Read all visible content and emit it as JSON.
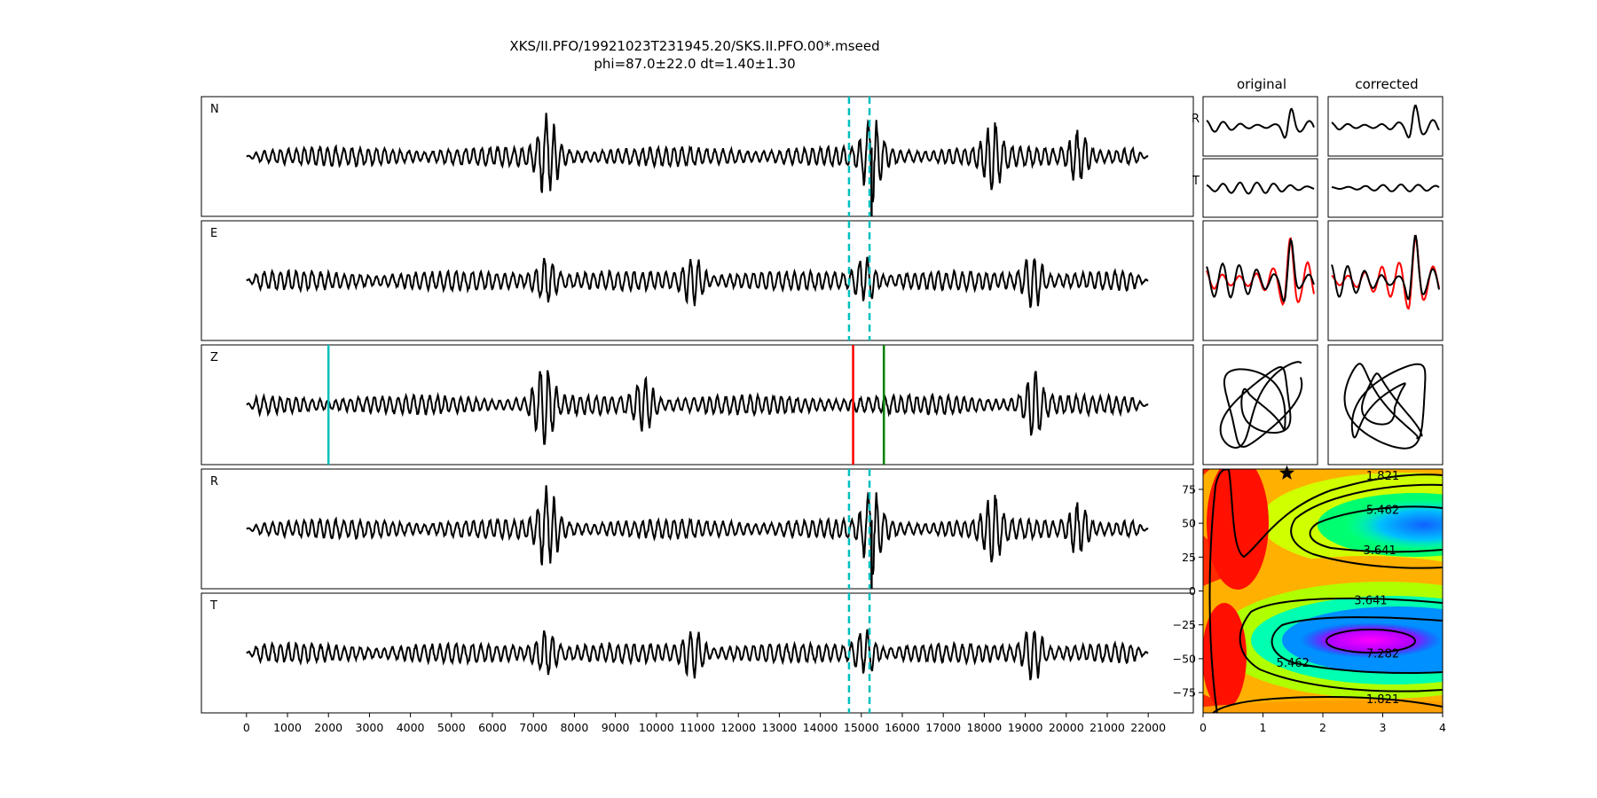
{
  "title": "XKS/II.PFO/19921023T231945.20/SKS.II.PFO.00*.mseed",
  "subtitle": "phi=87.0±22.0 dt=1.40±1.30",
  "panel_labels": {
    "original": "original",
    "corrected": "corrected",
    "row_r": "R",
    "row_t": "T"
  },
  "colors": {
    "trace": "#000000",
    "window_marker": "#00bfbf",
    "pick_start": "#00bfbf",
    "pick_red": "#ff0000",
    "pick_green": "#008000",
    "overlay_trace": "#ff0000"
  },
  "chart_data": [
    {
      "type": "line",
      "description_of_axes": "stacked seismogram traces sharing time axis",
      "xlim": [
        -1100,
        23100
      ],
      "x_ticks": [
        "0",
        "1000",
        "2000",
        "3000",
        "4000",
        "5000",
        "6000",
        "7000",
        "8000",
        "9000",
        "10000",
        "11000",
        "12000",
        "13000",
        "14000",
        "15000",
        "16000",
        "17000",
        "18000",
        "19000",
        "20000",
        "21000",
        "22000"
      ],
      "x_tick_values": [
        0,
        1000,
        2000,
        3000,
        4000,
        5000,
        6000,
        7000,
        8000,
        9000,
        10000,
        11000,
        12000,
        13000,
        14000,
        15000,
        16000,
        17000,
        18000,
        19000,
        20000,
        21000,
        22000
      ],
      "trace_x_range": [
        0,
        22000
      ],
      "series": [
        {
          "name": "N",
          "seed": 3,
          "bursts": [
            [
              7350,
              2.6
            ],
            [
              15250,
              2.6
            ],
            [
              18200,
              1.9
            ],
            [
              20300,
              1.6
            ]
          ],
          "window": [
            14700,
            15200
          ],
          "big_pick": 15250
        },
        {
          "name": "E",
          "seed": 7,
          "bursts": [
            [
              7300,
              1.4
            ],
            [
              10900,
              1.4
            ],
            [
              15100,
              1.3
            ],
            [
              19200,
              1.6
            ]
          ],
          "window": [
            14700,
            15200
          ]
        },
        {
          "name": "Z",
          "seed": 11,
          "bursts": [
            [
              7250,
              2.8
            ],
            [
              9700,
              1.5
            ],
            [
              19200,
              1.8
            ]
          ],
          "picks": [
            [
              2000,
              "cyan"
            ],
            [
              14800,
              "red"
            ],
            [
              15550,
              "green"
            ]
          ]
        },
        {
          "name": "R",
          "seed": 3,
          "bursts": [
            [
              7350,
              2.6
            ],
            [
              15250,
              2.6
            ],
            [
              18200,
              1.9
            ],
            [
              20300,
              1.6
            ]
          ],
          "window": [
            14700,
            15200
          ],
          "big_pick": 15250
        },
        {
          "name": "T",
          "seed": 7,
          "bursts": [
            [
              7300,
              1.4
            ],
            [
              10900,
              1.4
            ],
            [
              15100,
              1.3
            ],
            [
              19200,
              1.6
            ]
          ],
          "window": [
            14700,
            15200
          ]
        }
      ]
    },
    {
      "type": "heatmap",
      "description_of_axes": "splitting error surface: delay time vs fast direction",
      "xlim": [
        0,
        4
      ],
      "ylim": [
        -90,
        90
      ],
      "x_ticks": [
        "0",
        "1",
        "2",
        "3",
        "4"
      ],
      "x_tick_values": [
        0,
        1,
        2,
        3,
        4
      ],
      "y_ticks": [
        "75",
        "50",
        "25",
        "0",
        "−25",
        "−50",
        "−75"
      ],
      "y_tick_values": [
        75,
        50,
        25,
        0,
        -25,
        -50,
        -75
      ],
      "contour_labels": [
        {
          "text": "1.821",
          "x": 3.0,
          "y": 85
        },
        {
          "text": "5.462",
          "x": 3.0,
          "y": 60
        },
        {
          "text": "3.641",
          "x": 2.95,
          "y": 30
        },
        {
          "text": "3.641",
          "x": 2.8,
          "y": -7
        },
        {
          "text": "7.282",
          "x": 3.0,
          "y": -46
        },
        {
          "text": "5.462",
          "x": 1.5,
          "y": -53
        },
        {
          "text": "1.821",
          "x": 3.0,
          "y": -80
        }
      ],
      "best_fit": {
        "dt": 1.4,
        "phi": 87.0
      }
    }
  ]
}
